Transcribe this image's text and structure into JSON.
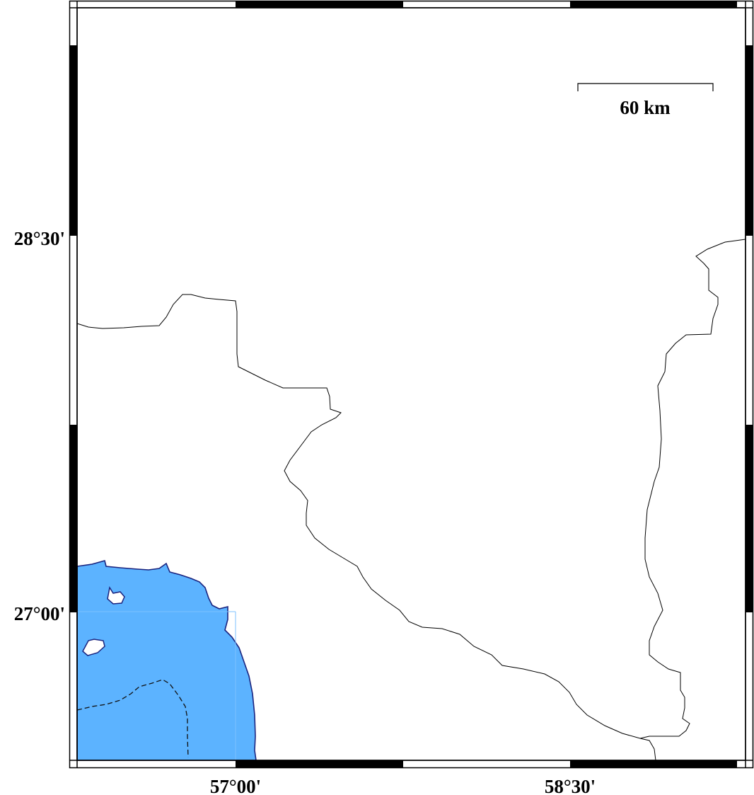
{
  "map": {
    "colors": {
      "water": "#5cb3ff",
      "coastline": "#1a237e",
      "border": "#000000",
      "land": "#ffffff"
    },
    "lat_labels": [
      "28°30'",
      "27°00'"
    ],
    "lon_labels": [
      "57°00'",
      "58°30'"
    ],
    "scale_bar": {
      "label": "60 km"
    },
    "frame_style": "fancy"
  }
}
